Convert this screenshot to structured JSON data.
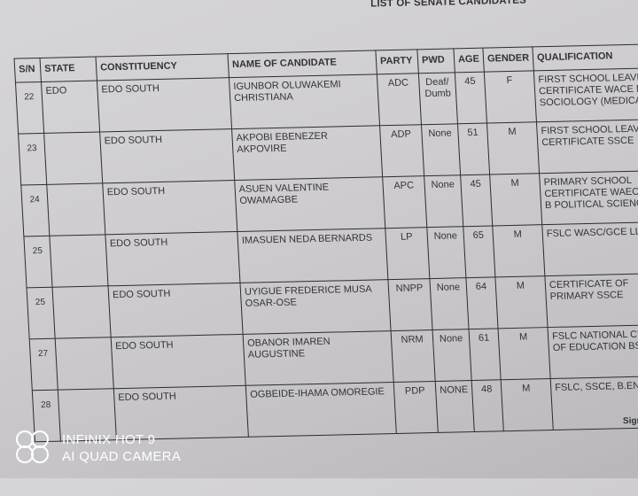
{
  "document": {
    "title": "LIST OF SENATE CANDIDATES",
    "columns": [
      "S/N",
      "STATE",
      "CONSTITUENCY",
      "NAME OF CANDIDATE",
      "PARTY",
      "PWD",
      "AGE",
      "GENDER",
      "QUALIFICATION"
    ],
    "rows": [
      {
        "sn": "22",
        "state": "EDO",
        "constituency": "EDO SOUTH",
        "name": "IGUNBOR OLUWAKEMI CHRISTIANA",
        "party": "ADC",
        "pwd": "Deaf/ Dumb",
        "age": "45",
        "gender": "F",
        "qualification": "FIRST SCHOOL LEAVING CERTIFICATE WACE MSC SOCIOLOGY (MEDICAL)"
      },
      {
        "sn": "23",
        "state": "",
        "constituency": "EDO SOUTH",
        "name": "AKPOBI EBENEZER AKPOVIRE",
        "party": "ADP",
        "pwd": "None",
        "age": "51",
        "gender": "M",
        "qualification": "FIRST SCHOOL LEAVING CERTIFICATE SSCE"
      },
      {
        "sn": "24",
        "state": "",
        "constituency": "EDO SOUTH",
        "name": "ASUEN VALENTINE OWAMAGBE",
        "party": "APC",
        "pwd": "None",
        "age": "45",
        "gender": "M",
        "qualification": "PRIMARY SCHOOL CERTIFICATE WAEC/GCE B POLITICAL SCIENCE"
      },
      {
        "sn": "25",
        "state": "",
        "constituency": "EDO SOUTH",
        "name": "IMASUEN NEDA BERNARDS",
        "party": "LP",
        "pwd": "None",
        "age": "65",
        "gender": "M",
        "qualification": "FSLC WASC/GCE LL.B"
      },
      {
        "sn": "25",
        "state": "",
        "constituency": "EDO SOUTH",
        "name": "UYIGUE FREDERICE MUSA OSAR-OSE",
        "party": "NNPP",
        "pwd": "None",
        "age": "64",
        "gender": "M",
        "qualification": "CERTIFICATE OF PRIMARY SSCE"
      },
      {
        "sn": "27",
        "state": "",
        "constituency": "EDO SOUTH",
        "name": "OBANOR IMAREN AUGUSTINE",
        "party": "NRM",
        "pwd": "None",
        "age": "61",
        "gender": "M",
        "qualification": "FSLC NATIONAL CERTIFI OF EDUCATION BSc"
      },
      {
        "sn": "28",
        "state": "",
        "constituency": "EDO SOUTH",
        "name": "OGBEIDE-IHAMA OMOREGIE",
        "party": "PDP",
        "pwd": "NONE",
        "age": "48",
        "gender": "M",
        "qualification": "FSLC, SSCE, B.ENG, MBA"
      }
    ],
    "signature_label": "Signe"
  },
  "watermark": {
    "line1": "INFINIX HOT 9",
    "line2": "AI QUAD CAMERA",
    "icon": "quad-circles-icon"
  }
}
